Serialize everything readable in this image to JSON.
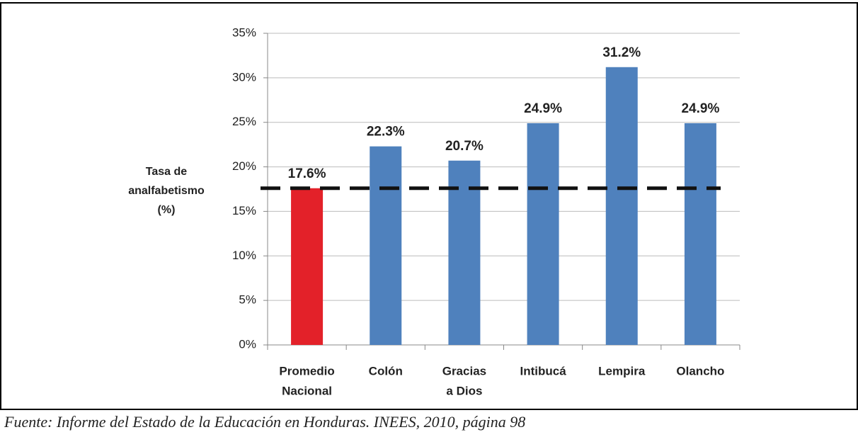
{
  "chart_data": {
    "type": "bar",
    "y_axis_label": [
      "Tasa de",
      "analfabetismo",
      "(%)"
    ],
    "categories": [
      [
        "Promedio",
        "Nacional"
      ],
      [
        "Colón"
      ],
      [
        "Gracias",
        "a Dios"
      ],
      [
        "Intibucá"
      ],
      [
        "Lempira"
      ],
      [
        "Olancho"
      ]
    ],
    "values": [
      17.6,
      22.3,
      20.7,
      24.9,
      31.2,
      24.9
    ],
    "value_labels": [
      "17.6%",
      "22.3%",
      "20.7%",
      "24.9%",
      "31.2%",
      "24.9%"
    ],
    "colors": [
      "#e32129",
      "#4f81bd",
      "#4f81bd",
      "#4f81bd",
      "#4f81bd",
      "#4f81bd"
    ],
    "ylim": [
      0,
      35
    ],
    "yticks": [
      {
        "value": 0,
        "label": "0%"
      },
      {
        "value": 5,
        "label": "5%"
      },
      {
        "value": 10,
        "label": "10%"
      },
      {
        "value": 15,
        "label": "15%"
      },
      {
        "value": 20,
        "label": "20%"
      },
      {
        "value": 25,
        "label": "25%"
      },
      {
        "value": 30,
        "label": "30%"
      },
      {
        "value": 35,
        "label": "35%"
      }
    ],
    "grid": true,
    "source": "Fuente: Informe del Estado de la Educación en Honduras. INEES, 2010, página 98"
  }
}
